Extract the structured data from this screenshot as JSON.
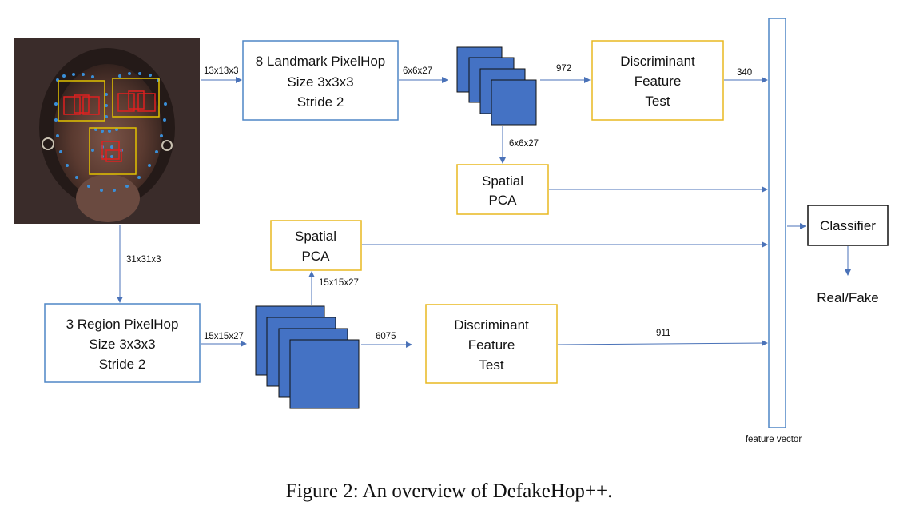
{
  "colors": {
    "arrow": "#4a72b8",
    "blue_box_border": "#4f86c6",
    "yellow_box_border": "#e8b820",
    "cube_fill": "#4472c4",
    "landmark_box": "#e2c200",
    "landmark_region": "#e02020",
    "landmark_dots": "#3a8fd8"
  },
  "face_image": {
    "alt": "face with landmark regions",
    "landmark_dots_icon": "landmark-dots-icon"
  },
  "boxes": {
    "landmark_pixelhop": {
      "line1": "8 Landmark PixelHop",
      "line2": "Size 3x3x3",
      "line3": "Stride 2"
    },
    "region_pixelhop": {
      "line1": "3 Region PixelHop",
      "line2": "Size 3x3x3",
      "line3": "Stride 2"
    },
    "dft_top": {
      "line1": "Discriminant",
      "line2": "Feature",
      "line3": "Test"
    },
    "dft_bottom": {
      "line1": "Discriminant",
      "line2": "Feature",
      "line3": "Test"
    },
    "pca_top": {
      "line1": "Spatial",
      "line2": "PCA"
    },
    "pca_bottom": {
      "line1": "Spatial",
      "line2": "PCA"
    },
    "classifier": {
      "label": "Classifier"
    }
  },
  "labels": {
    "input_top": "13x13x3",
    "landmark_out": "6x6x27",
    "top_flat": "972",
    "top_dft_out": "340",
    "top_pca_in": "6x6x27",
    "input_region": "31x31x3",
    "region_out": "15x15x27",
    "bottom_pca_in": "15x15x27",
    "bottom_flat": "6075",
    "bottom_dft_out": "911",
    "feature_vector": "feature vector",
    "output": "Real/Fake"
  },
  "caption": "Figure 2:  An overview of DefakeHop++."
}
